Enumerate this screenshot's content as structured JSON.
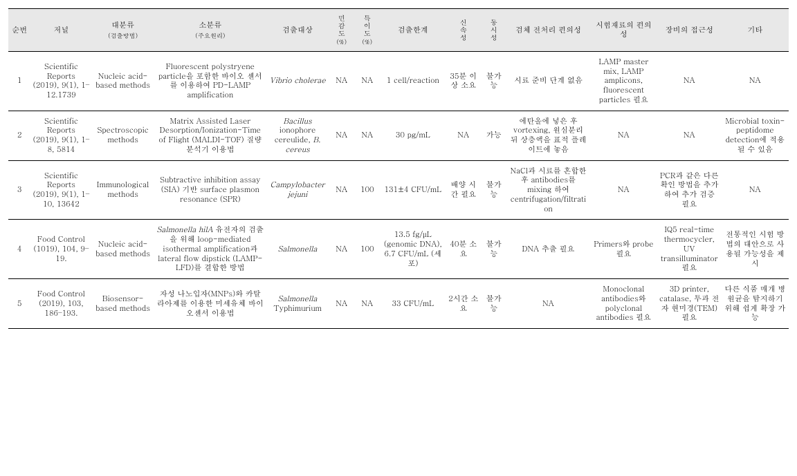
{
  "columns": [
    {
      "key": "idx",
      "label": "순번",
      "sub": ""
    },
    {
      "key": "journal",
      "label": "저널",
      "sub": ""
    },
    {
      "key": "method_main",
      "label": "대분류",
      "sub": "(검출방법)"
    },
    {
      "key": "method_sub",
      "label": "소분류",
      "sub": "(주요원리)"
    },
    {
      "key": "target",
      "label": "검출대상",
      "sub": ""
    },
    {
      "key": "sensitivity",
      "label": "민감도",
      "sub": "(%)"
    },
    {
      "key": "specificity",
      "label": "특이도",
      "sub": "(%)"
    },
    {
      "key": "lod",
      "label": "검출한계",
      "sub": ""
    },
    {
      "key": "rapidity",
      "label": "신속성",
      "sub": ""
    },
    {
      "key": "simultaneity",
      "label": "동시성",
      "sub": ""
    },
    {
      "key": "pretreatment",
      "label": "검체 전처리 편의성",
      "sub": ""
    },
    {
      "key": "reagent",
      "label": "시험재료의 편의성",
      "sub": ""
    },
    {
      "key": "equipment",
      "label": "장비의 접근성",
      "sub": ""
    },
    {
      "key": "etc",
      "label": "기타",
      "sub": ""
    }
  ],
  "rows": [
    {
      "idx": "1",
      "journal": "Scientific Reports (2019), 9(1), 1–12.1739",
      "method_main": "Nucleic acid-based methods",
      "method_sub_pre": "Fluorescent polystryene particle을 포함한 바이오 센서를 이용하여 PD-LAMP amplification",
      "method_sub_it": "",
      "method_sub_post": "",
      "target_it": "Vibrio cholerae",
      "target_post": "",
      "sensitivity": "NA",
      "specificity": "NA",
      "lod": "1 cell/reaction",
      "rapidity": "35분 이상 소요",
      "simultaneity": "불가능",
      "pretreatment": "시료 준비 단계 없음",
      "reagent": "LAMP master mix, LAMP amplicons, fluorescent particles 필요",
      "equipment": "NA",
      "etc": "NA"
    },
    {
      "idx": "2",
      "journal": "Scientific Reports (2019), 9(1), 1–8, 5814",
      "method_main": "Spectroscopic methods",
      "method_sub_pre": "Matrix Assisted Laser Desorption/Ionization-Time of Flight (MALDI-TOF) 질량분석기 이용법",
      "method_sub_it": "",
      "method_sub_post": "",
      "target_it": "Bacillus",
      "target_post": " ionophore cereulide, ",
      "target_it2": "B. cereus",
      "sensitivity": "NA",
      "specificity": "NA",
      "lod": "30 pg/mL",
      "rapidity": "NA",
      "simultaneity": "가능",
      "pretreatment": "에탄올에 넣은 후 vortexing, 원심분리 뒤 상층액을 표적 플레이트에 놓음",
      "reagent": "NA",
      "equipment": "NA",
      "etc": "Microbial toxin-peptidome detection에 적용될 수 있음"
    },
    {
      "idx": "3",
      "journal": "Scientific Reports (2019), 9(1), 1–10, 13642",
      "method_main": "Immunological methods",
      "method_sub_pre": "Subtractive inhibition assay (SIA) 기반 surface plasmon resonance (SPR)",
      "method_sub_it": "",
      "method_sub_post": "",
      "target_it": "Campylobacter jejuni",
      "target_post": "",
      "sensitivity": "NA",
      "specificity": "100",
      "lod": "131±4 CFU/mL",
      "rapidity": "배양 시간 필요",
      "simultaneity": "불가능",
      "pretreatment": "NaCl과 시료를 혼합한 후 antibodies를 mixing 하여 centrifugation/filtration",
      "reagent": "NA",
      "equipment": "PCR과 같은 다른 확인 방법을 추가하여 추가 검증 필요",
      "etc": "NA"
    },
    {
      "idx": "4",
      "journal": "Food Control (1019), 104, 9–19.",
      "method_main": "Nucleic acid-based methods",
      "method_sub_it": "Salmonella hilA",
      "method_sub_post": " 유전자의 검출을 위해 loop-mediated isothermal amplification과 lateral flow dipstick (LAMP-LFD)를 결합한 방법",
      "method_sub_pre": "",
      "target_it": "Salmonella",
      "target_post": "",
      "sensitivity": "NA",
      "specificity": "100",
      "lod": "13.5 fg/μL (genomic DNA), 6.7 CFU/mL (세포)",
      "rapidity": "40분 소요",
      "simultaneity": "불가능",
      "pretreatment": "DNA 추출 필요",
      "reagent": "Primers와 probe 필요",
      "equipment": "IQ5 real-time thermocycler, UV transilluminator 필요",
      "etc": "전통적인 시험 방법의 대안으로 사용될 가능성을 제시"
    },
    {
      "idx": "5",
      "journal": "Food Control (2019), 103, 186–193.",
      "method_main": "Biosensor-based methods",
      "method_sub_pre": "자성 나노입자(MNPs)와 카탈라아제를 이용한 미세유체 바이오센서 이용법",
      "method_sub_it": "",
      "method_sub_post": "",
      "target_it": "Salmonella",
      "target_post": " Typhimurium",
      "sensitivity": "NA",
      "specificity": "NA",
      "lod": "33 CFU/mL",
      "rapidity": "2시간 소요",
      "simultaneity": "불가능",
      "pretreatment": "NA",
      "reagent": "Monoclonal antibodies와 polyclonal antibodies 필요",
      "equipment": "3D printer, catalase, 투과 전자 현미경(TEM) 필요",
      "etc": "다른 식품 매개 병원균을 탐지하기 위해 쉽게 확장 가능"
    }
  ]
}
